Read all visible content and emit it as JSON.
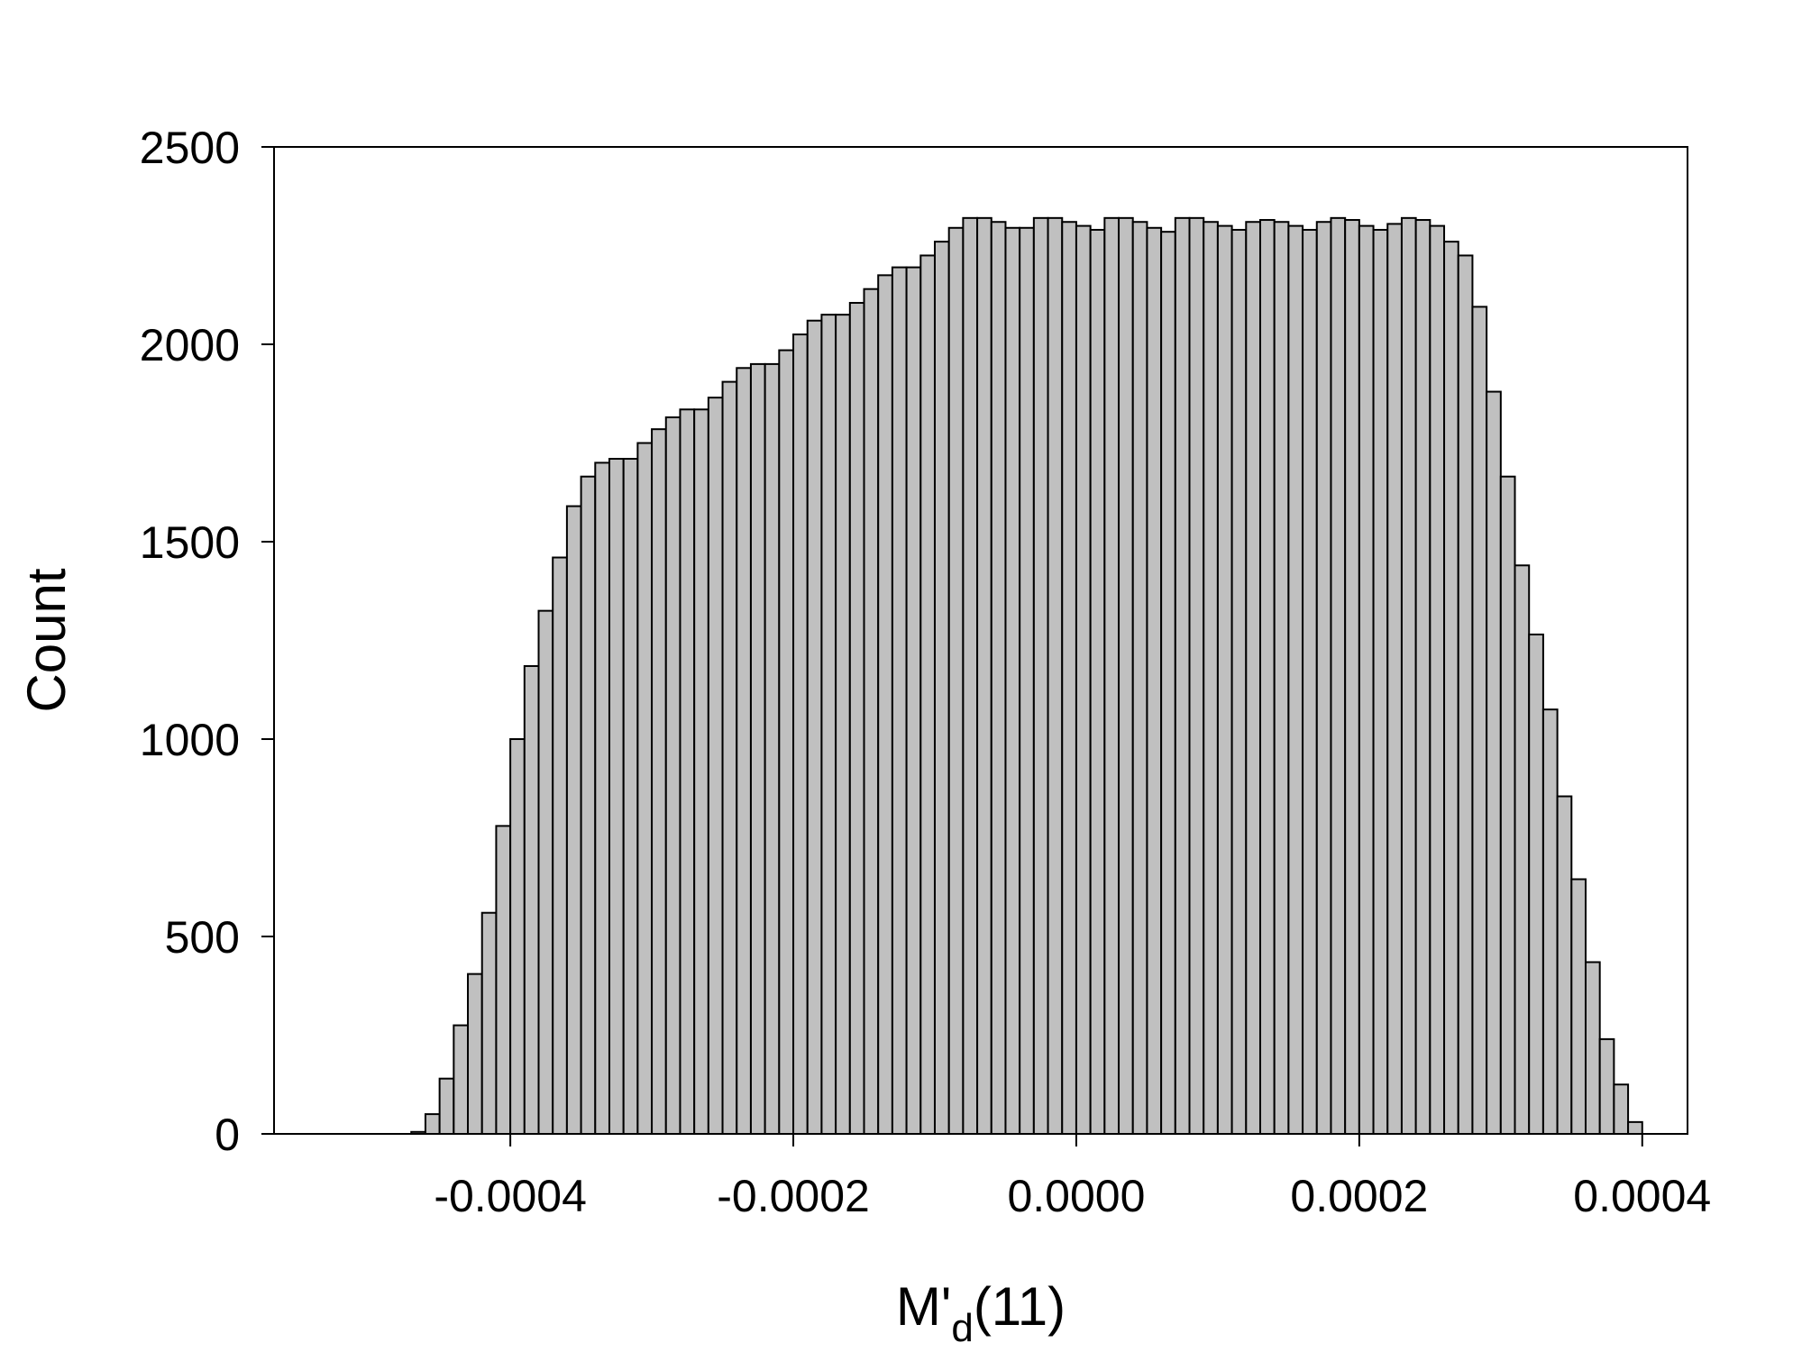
{
  "chart_data": {
    "type": "bar",
    "title": "",
    "xlabel": {
      "main": "M'",
      "sub": "d",
      "suffix": "(11)"
    },
    "ylabel": "Count",
    "xlim": [
      -0.000567,
      0.000432
    ],
    "ylim": [
      0,
      2500
    ],
    "x_ticks": [
      -0.0004,
      -0.0002,
      0.0,
      0.0002,
      0.0004
    ],
    "x_tick_labels": [
      "-0.0004",
      "-0.0002",
      "0.0000",
      "0.0002",
      "0.0004"
    ],
    "y_ticks": [
      0,
      500,
      1000,
      1500,
      2000,
      2500
    ],
    "y_tick_labels": [
      "0",
      "500",
      "1000",
      "1500",
      "2000",
      "2500"
    ],
    "bin_width": 1e-05,
    "bins_start": -0.00047,
    "values": [
      5,
      50,
      140,
      275,
      405,
      560,
      780,
      1000,
      1185,
      1325,
      1460,
      1590,
      1665,
      1700,
      1710,
      1710,
      1750,
      1785,
      1815,
      1835,
      1835,
      1865,
      1905,
      1940,
      1950,
      1950,
      1985,
      2025,
      2060,
      2075,
      2075,
      2105,
      2140,
      2175,
      2195,
      2195,
      2225,
      2260,
      2295,
      2320,
      2320,
      2310,
      2295,
      2295,
      2320,
      2320,
      2310,
      2300,
      2290,
      2320,
      2320,
      2310,
      2295,
      2285,
      2320,
      2320,
      2310,
      2300,
      2290,
      2310,
      2315,
      2310,
      2300,
      2290,
      2310,
      2320,
      2315,
      2300,
      2290,
      2305,
      2320,
      2315,
      2300,
      2260,
      2225,
      2095,
      1880,
      1665,
      1440,
      1265,
      1075,
      855,
      645,
      435,
      240,
      125,
      30
    ],
    "bar_color": "#c0c0c0",
    "bar_edge_color": "#000000",
    "grid": false,
    "legend": "none"
  }
}
